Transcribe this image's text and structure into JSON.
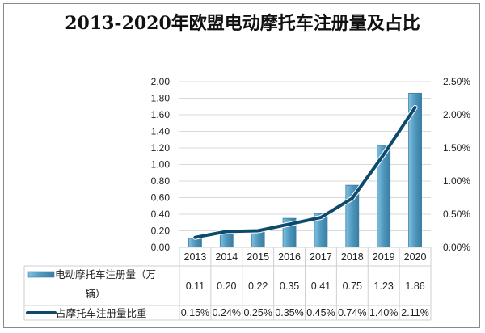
{
  "chart_data": {
    "type": "bar+line",
    "title": "2013-2020年欧盟电动摩托车注册量及占比",
    "categories": [
      "2013",
      "2014",
      "2015",
      "2016",
      "2017",
      "2018",
      "2019",
      "2020"
    ],
    "series": [
      {
        "name": "电动摩托车注册量（万辆）",
        "type": "bar",
        "axis": "left",
        "values": [
          0.11,
          0.2,
          0.22,
          0.35,
          0.41,
          0.75,
          1.23,
          1.86
        ],
        "labels": [
          "0.11",
          "0.20",
          "0.22",
          "0.35",
          "0.41",
          "0.75",
          "1.23",
          "1.86"
        ],
        "color": "#4f97bd"
      },
      {
        "name": "占摩托车注册量比重",
        "type": "line",
        "axis": "right",
        "values": [
          0.15,
          0.24,
          0.25,
          0.35,
          0.45,
          0.74,
          1.4,
          2.11
        ],
        "labels": [
          "0.15%",
          "0.24%",
          "0.25%",
          "0.35%",
          "0.45%",
          "0.74%",
          "1.40%",
          "2.11%"
        ],
        "color": "#0d4a6b"
      }
    ],
    "y_left": {
      "range": [
        0,
        2.0
      ],
      "ticks": [
        "0.00",
        "0.20",
        "0.40",
        "0.60",
        "0.80",
        "1.00",
        "1.20",
        "1.40",
        "1.60",
        "1.80",
        "2.00"
      ]
    },
    "y_right": {
      "range": [
        0,
        2.5
      ],
      "ticks": [
        "0.00%",
        "0.50%",
        "1.00%",
        "1.50%",
        "2.00%",
        "2.50%"
      ]
    },
    "grid": true,
    "legend": "data-table"
  }
}
